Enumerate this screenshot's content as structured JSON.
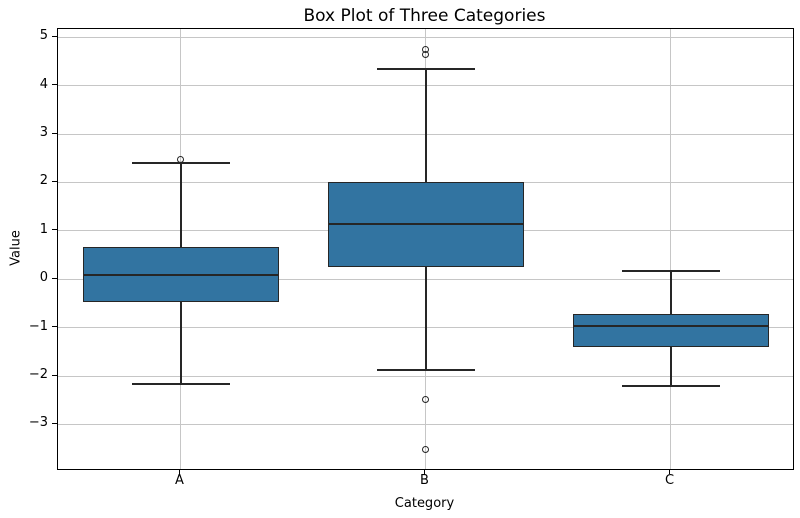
{
  "chart_data": {
    "type": "box",
    "title": "Box Plot of Three Categories",
    "xlabel": "Category",
    "ylabel": "Value",
    "categories": [
      "A",
      "B",
      "C"
    ],
    "yticks": [
      5,
      4,
      3,
      2,
      1,
      0,
      -1,
      -2,
      -3
    ],
    "ylim": [
      -3.92,
      5.17
    ],
    "grid": true,
    "legend": false,
    "series": [
      {
        "category": "A",
        "whisker_low": -2.16,
        "q1": -0.48,
        "median": 0.08,
        "q3": 0.67,
        "whisker_high": 2.41,
        "outliers": [
          2.48
        ]
      },
      {
        "category": "B",
        "whisker_low": -1.88,
        "q1": 0.25,
        "median": 1.14,
        "q3": 2.0,
        "whisker_high": 4.34,
        "outliers": [
          4.75,
          4.64,
          -2.48,
          -3.51
        ]
      },
      {
        "category": "C",
        "whisker_low": -2.2,
        "q1": -1.39,
        "median": -0.97,
        "q3": -0.72,
        "whisker_high": 0.17,
        "outliers": []
      }
    ],
    "colors": {
      "box_fill": "#3274a1",
      "box_edge": "#262626",
      "median": "#262626",
      "whisker": "#262626",
      "grid": "#c6c6c6",
      "spine": "#000000",
      "background": "#ffffff"
    }
  }
}
